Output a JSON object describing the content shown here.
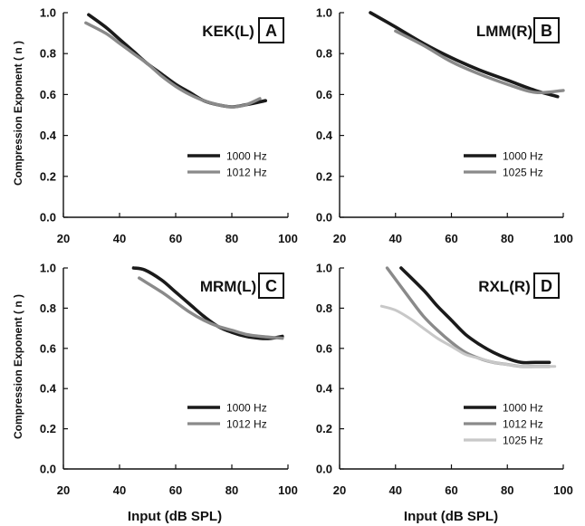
{
  "figure": {
    "ylabel": "Compression Exponent ( n )",
    "xlabel": "Input (dB SPL)"
  },
  "chart_data": [
    {
      "type": "line",
      "panel": "A",
      "title": "KEK(L)",
      "xlabel": "",
      "ylabel": "Compression Exponent ( n )",
      "xlim": [
        20,
        100
      ],
      "ylim": [
        0.0,
        1.0
      ],
      "xticks": [
        "20",
        "40",
        "60",
        "80",
        "100"
      ],
      "yticks": [
        "0.0",
        "0.2",
        "0.4",
        "0.6",
        "0.8",
        "1.0"
      ],
      "legend_position": "lower-right",
      "series": [
        {
          "name": "1000 Hz",
          "color": "#1a1a1a",
          "x": [
            29,
            35,
            40,
            45,
            50,
            55,
            60,
            65,
            70,
            75,
            80,
            85,
            92
          ],
          "y": [
            0.99,
            0.93,
            0.87,
            0.81,
            0.75,
            0.7,
            0.65,
            0.61,
            0.57,
            0.55,
            0.54,
            0.55,
            0.57
          ]
        },
        {
          "name": "1012 Hz",
          "color": "#8a8a8a",
          "x": [
            28,
            35,
            40,
            45,
            50,
            55,
            60,
            65,
            70,
            75,
            80,
            85,
            90
          ],
          "y": [
            0.95,
            0.9,
            0.85,
            0.8,
            0.75,
            0.69,
            0.64,
            0.6,
            0.57,
            0.55,
            0.54,
            0.55,
            0.58
          ]
        }
      ]
    },
    {
      "type": "line",
      "panel": "B",
      "title": "LMM(R)",
      "xlabel": "",
      "ylabel": "",
      "xlim": [
        20,
        100
      ],
      "ylim": [
        0.0,
        1.0
      ],
      "xticks": [
        "20",
        "40",
        "60",
        "80",
        "100"
      ],
      "yticks": [
        "0.0",
        "0.2",
        "0.4",
        "0.6",
        "0.8",
        "1.0"
      ],
      "legend_position": "lower-right",
      "series": [
        {
          "name": "1000 Hz",
          "color": "#1a1a1a",
          "x": [
            31,
            40,
            50,
            60,
            70,
            80,
            90,
            98
          ],
          "y": [
            1.0,
            0.93,
            0.85,
            0.78,
            0.72,
            0.67,
            0.62,
            0.59
          ]
        },
        {
          "name": "1025 Hz",
          "color": "#8a8a8a",
          "x": [
            40,
            50,
            60,
            70,
            80,
            90,
            100
          ],
          "y": [
            0.91,
            0.84,
            0.76,
            0.7,
            0.65,
            0.61,
            0.62
          ]
        }
      ]
    },
    {
      "type": "line",
      "panel": "C",
      "title": "MRM(L)",
      "xlabel": "Input (dB SPL)",
      "ylabel": "Compression Exponent ( n )",
      "xlim": [
        20,
        100
      ],
      "ylim": [
        0.0,
        1.0
      ],
      "xticks": [
        "20",
        "40",
        "60",
        "80",
        "100"
      ],
      "yticks": [
        "0.0",
        "0.2",
        "0.4",
        "0.6",
        "0.8",
        "1.0"
      ],
      "legend_position": "lower-right",
      "series": [
        {
          "name": "1000 Hz",
          "color": "#1a1a1a",
          "x": [
            45,
            49,
            55,
            60,
            65,
            70,
            75,
            80,
            85,
            90,
            94,
            98
          ],
          "y": [
            1.0,
            0.99,
            0.94,
            0.88,
            0.82,
            0.76,
            0.71,
            0.68,
            0.66,
            0.65,
            0.65,
            0.66
          ]
        },
        {
          "name": "1012 Hz",
          "color": "#8a8a8a",
          "x": [
            47,
            55,
            60,
            65,
            70,
            75,
            80,
            85,
            90,
            98
          ],
          "y": [
            0.95,
            0.88,
            0.83,
            0.78,
            0.74,
            0.71,
            0.69,
            0.67,
            0.66,
            0.65
          ]
        }
      ]
    },
    {
      "type": "line",
      "panel": "D",
      "title": "RXL(R)",
      "xlabel": "Input (dB SPL)",
      "ylabel": "",
      "xlim": [
        20,
        100
      ],
      "ylim": [
        0.0,
        1.0
      ],
      "xticks": [
        "20",
        "40",
        "60",
        "80",
        "100"
      ],
      "yticks": [
        "0.0",
        "0.2",
        "0.4",
        "0.6",
        "0.8",
        "1.0"
      ],
      "legend_position": "lower-right",
      "series": [
        {
          "name": "1000 Hz",
          "color": "#1a1a1a",
          "x": [
            42,
            50,
            55,
            60,
            65,
            70,
            75,
            80,
            85,
            90,
            95
          ],
          "y": [
            1.0,
            0.89,
            0.81,
            0.74,
            0.67,
            0.62,
            0.58,
            0.55,
            0.53,
            0.53,
            0.53
          ]
        },
        {
          "name": "1012 Hz",
          "color": "#8a8a8a",
          "x": [
            37,
            45,
            50,
            55,
            60,
            65,
            70,
            75,
            80,
            85,
            90,
            95
          ],
          "y": [
            1.0,
            0.85,
            0.76,
            0.69,
            0.63,
            0.58,
            0.55,
            0.53,
            0.52,
            0.51,
            0.51,
            0.51
          ]
        },
        {
          "name": "1025 Hz",
          "color": "#c8c8c8",
          "x": [
            35,
            40,
            45,
            50,
            55,
            60,
            65,
            70,
            75,
            80,
            85,
            90,
            97
          ],
          "y": [
            0.81,
            0.79,
            0.75,
            0.7,
            0.65,
            0.61,
            0.57,
            0.55,
            0.53,
            0.52,
            0.51,
            0.51,
            0.51
          ]
        }
      ]
    }
  ]
}
